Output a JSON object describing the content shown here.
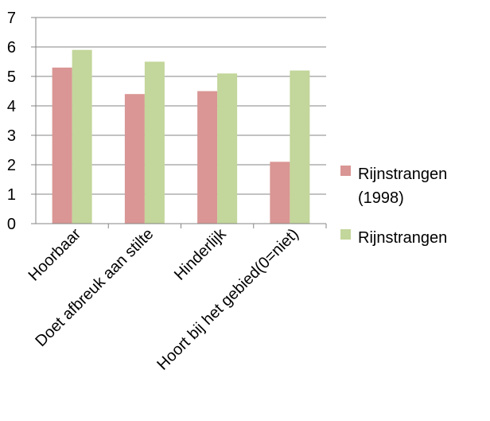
{
  "chart_data": {
    "type": "bar",
    "categories": [
      "Hoorbaar",
      "Doet afbreuk aan stilte",
      "Hinderlijk",
      "Hoort bij het gebied(0=niet)"
    ],
    "series": [
      {
        "name": "Rijnstrangen (1998)",
        "legend_lines": [
          "Rijnstrangen",
          "(1998)"
        ],
        "color": "#D99694",
        "values": [
          5.3,
          4.4,
          4.5,
          2.1
        ]
      },
      {
        "name": "Rijnstrangen",
        "legend_lines": [
          "Rijnstrangen"
        ],
        "color": "#C3D69B",
        "values": [
          5.9,
          5.5,
          5.1,
          5.2
        ]
      }
    ],
    "ylim": [
      0,
      7
    ],
    "yticks": [
      0,
      1,
      2,
      3,
      4,
      5,
      6,
      7
    ],
    "grid": true,
    "legend_position": "right"
  }
}
